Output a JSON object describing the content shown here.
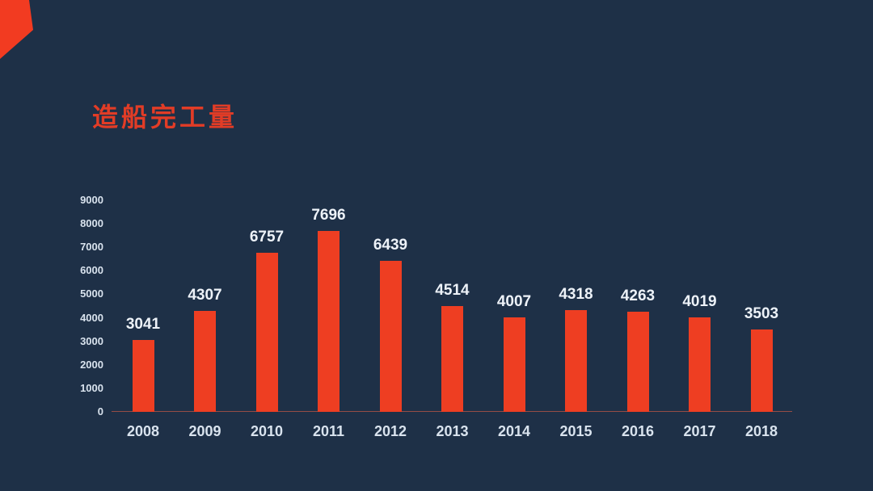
{
  "page": {
    "title": "造船完工量",
    "background_color": "#1e3047",
    "title_color": "#e23c26",
    "accent_color": "#ee3e22"
  },
  "decorations": {
    "corner_shape": "orange-rotated-square",
    "corner_shape_color": "#f23b21"
  },
  "chart_data": {
    "type": "bar",
    "title": "造船完工量",
    "categories": [
      "2008",
      "2009",
      "2010",
      "2011",
      "2012",
      "2013",
      "2014",
      "2015",
      "2016",
      "2017",
      "2018"
    ],
    "values": [
      3041,
      4307,
      6757,
      7696,
      6439,
      4514,
      4007,
      4318,
      4263,
      4019,
      3503
    ],
    "xlabel": "",
    "ylabel": "",
    "ylim": [
      0,
      9000
    ],
    "y_ticks": [
      0,
      1000,
      2000,
      3000,
      4000,
      5000,
      6000,
      7000,
      8000,
      9000
    ],
    "grid": false,
    "legend_position": "none",
    "bar_color": "#ee3e22",
    "value_label_color": "#edf2f8",
    "axis_label_color": "#d9e3ee",
    "data_labels_shown": true
  }
}
